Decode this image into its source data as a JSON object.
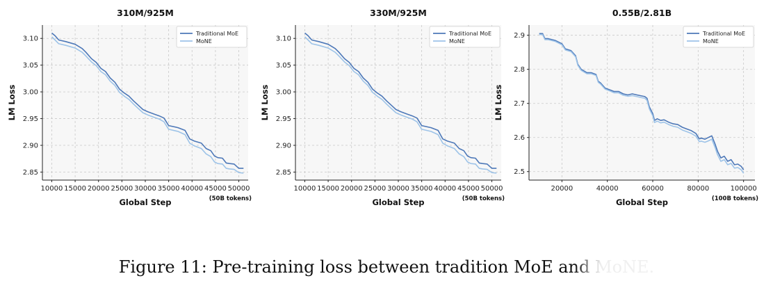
{
  "caption": "Figure 11: Pre-training loss between tradition MoE and MoNE.",
  "chart_data": [
    {
      "type": "line",
      "title": "310M/925M",
      "xlabel": "Global Step",
      "ylabel": "LM Loss",
      "xlim": [
        8000,
        52000
      ],
      "ylim": [
        2.835,
        3.125
      ],
      "xticks": [
        10000,
        15000,
        20000,
        25000,
        30000,
        35000,
        40000,
        45000,
        50000
      ],
      "yticks": [
        2.85,
        2.9,
        2.95,
        3.0,
        3.05,
        3.1
      ],
      "tick_decimals": 2,
      "annotation": "(50B tokens)",
      "legend": "top-right",
      "grid": true,
      "series": [
        {
          "name": "Traditional MoE",
          "color": "#4d78b8",
          "x": [
            10000,
            10700,
            11500,
            13000,
            15000,
            16500,
            17300,
            18500,
            19500,
            20500,
            21500,
            22500,
            23500,
            24500,
            25500,
            26500,
            27500,
            28500,
            29500,
            30500,
            32000,
            33000,
            34000,
            35000,
            37000,
            38500,
            39500,
            40500,
            42000,
            43000,
            44000,
            44800,
            45500,
            46500,
            47300,
            48000,
            49000,
            50000,
            51000
          ],
          "y": [
            3.11,
            3.105,
            3.097,
            3.094,
            3.089,
            3.081,
            3.074,
            3.062,
            3.055,
            3.044,
            3.038,
            3.026,
            3.018,
            3.005,
            2.998,
            2.992,
            2.983,
            2.975,
            2.967,
            2.963,
            2.958,
            2.955,
            2.951,
            2.937,
            2.933,
            2.928,
            2.912,
            2.908,
            2.904,
            2.894,
            2.89,
            2.88,
            2.877,
            2.876,
            2.867,
            2.866,
            2.865,
            2.857,
            2.857
          ]
        },
        {
          "name": "MoNE",
          "color": "#9dc3e8",
          "x": [
            10000,
            10700,
            11500,
            13000,
            15000,
            16500,
            17300,
            18500,
            19500,
            20500,
            21500,
            22500,
            23500,
            24500,
            25500,
            26500,
            27500,
            28500,
            29500,
            30500,
            32000,
            33000,
            34000,
            35000,
            37000,
            38500,
            39500,
            40500,
            42000,
            43000,
            44000,
            44800,
            45500,
            46500,
            47300,
            48000,
            49000,
            50000,
            51000
          ],
          "y": [
            3.103,
            3.097,
            3.09,
            3.087,
            3.082,
            3.074,
            3.067,
            3.056,
            3.049,
            3.038,
            3.032,
            3.02,
            3.012,
            2.999,
            2.992,
            2.986,
            2.977,
            2.969,
            2.961,
            2.957,
            2.952,
            2.949,
            2.944,
            2.93,
            2.926,
            2.92,
            2.904,
            2.899,
            2.894,
            2.884,
            2.879,
            2.869,
            2.866,
            2.865,
            2.857,
            2.856,
            2.855,
            2.849,
            2.848
          ]
        }
      ]
    },
    {
      "type": "line",
      "title": "330M/925M",
      "xlabel": "Global Step",
      "ylabel": "LM Loss",
      "xlim": [
        8000,
        52000
      ],
      "ylim": [
        2.835,
        3.125
      ],
      "xticks": [
        10000,
        15000,
        20000,
        25000,
        30000,
        35000,
        40000,
        45000,
        50000
      ],
      "yticks": [
        2.85,
        2.9,
        2.95,
        3.0,
        3.05,
        3.1
      ],
      "tick_decimals": 2,
      "annotation": "(50B tokens)",
      "legend": "top-right",
      "grid": true,
      "series": [
        {
          "name": "Traditional MoE",
          "color": "#4d78b8",
          "x": [
            10000,
            10700,
            11500,
            13000,
            15000,
            16500,
            17300,
            18500,
            19500,
            20500,
            21500,
            22500,
            23500,
            24500,
            25500,
            26500,
            27500,
            28500,
            29500,
            30500,
            32000,
            33000,
            34000,
            35000,
            37000,
            38500,
            39500,
            40500,
            42000,
            43000,
            44000,
            44800,
            45500,
            46500,
            47300,
            48000,
            49000,
            50000,
            51000
          ],
          "y": [
            3.11,
            3.105,
            3.097,
            3.094,
            3.089,
            3.081,
            3.074,
            3.062,
            3.055,
            3.044,
            3.038,
            3.026,
            3.018,
            3.005,
            2.998,
            2.992,
            2.983,
            2.975,
            2.967,
            2.963,
            2.958,
            2.955,
            2.951,
            2.937,
            2.933,
            2.928,
            2.912,
            2.908,
            2.904,
            2.894,
            2.89,
            2.88,
            2.877,
            2.876,
            2.867,
            2.866,
            2.865,
            2.857,
            2.857
          ]
        },
        {
          "name": "MoNE",
          "color": "#9dc3e8",
          "x": [
            10000,
            10700,
            11500,
            13000,
            15000,
            16500,
            17300,
            18500,
            19500,
            20500,
            21500,
            22500,
            23500,
            24500,
            25500,
            26500,
            27500,
            28500,
            29500,
            30500,
            32000,
            33000,
            34000,
            35000,
            37000,
            38500,
            39500,
            40500,
            42000,
            43000,
            44000,
            44800,
            45500,
            46500,
            47300,
            48000,
            49000,
            50000,
            51000
          ],
          "y": [
            3.103,
            3.097,
            3.09,
            3.087,
            3.082,
            3.074,
            3.067,
            3.056,
            3.049,
            3.038,
            3.032,
            3.02,
            3.012,
            2.999,
            2.992,
            2.986,
            2.977,
            2.969,
            2.961,
            2.957,
            2.952,
            2.949,
            2.944,
            2.93,
            2.926,
            2.92,
            2.904,
            2.899,
            2.894,
            2.884,
            2.879,
            2.869,
            2.866,
            2.865,
            2.857,
            2.856,
            2.855,
            2.849,
            2.848
          ]
        }
      ]
    },
    {
      "type": "line",
      "title": "0.55B/2.81B",
      "xlabel": "Global Step",
      "ylabel": "LM Loss",
      "xlim": [
        5500,
        105000
      ],
      "ylim": [
        2.475,
        2.93
      ],
      "xticks": [
        20000,
        40000,
        60000,
        80000,
        100000
      ],
      "yticks": [
        2.5,
        2.6,
        2.7,
        2.8,
        2.9
      ],
      "tick_decimals": 1,
      "annotation": "(100B tokens)",
      "legend": "top-right",
      "grid": true,
      "series": [
        {
          "name": "Traditional MoE",
          "color": "#4d78b8",
          "x": [
            10000,
            11500,
            12500,
            14000,
            17000,
            20000,
            21500,
            24000,
            26000,
            27000,
            28500,
            31000,
            33000,
            35000,
            36000,
            37000,
            39000,
            41000,
            43000,
            45000,
            47000,
            49000,
            51000,
            53000,
            55000,
            56500,
            57500,
            58500,
            60000,
            60800,
            62000,
            63500,
            65000,
            67000,
            69000,
            71000,
            73000,
            75000,
            77000,
            79000,
            80500,
            81500,
            83000,
            84500,
            86000,
            87500,
            88500,
            90000,
            91500,
            93000,
            94500,
            96000,
            97500,
            99000,
            100000
          ],
          "y": [
            2.905,
            2.905,
            2.89,
            2.89,
            2.885,
            2.875,
            2.86,
            2.855,
            2.84,
            2.815,
            2.8,
            2.79,
            2.79,
            2.785,
            2.765,
            2.76,
            2.745,
            2.74,
            2.735,
            2.735,
            2.728,
            2.725,
            2.728,
            2.725,
            2.722,
            2.72,
            2.715,
            2.69,
            2.67,
            2.65,
            2.655,
            2.65,
            2.652,
            2.645,
            2.64,
            2.638,
            2.63,
            2.625,
            2.62,
            2.612,
            2.596,
            2.598,
            2.595,
            2.6,
            2.605,
            2.58,
            2.56,
            2.54,
            2.545,
            2.53,
            2.535,
            2.52,
            2.522,
            2.515,
            2.505
          ]
        },
        {
          "name": "MoNE",
          "color": "#9dc3e8",
          "x": [
            10000,
            11500,
            12500,
            14000,
            17000,
            20000,
            21500,
            24000,
            26000,
            27000,
            28500,
            31000,
            33000,
            35000,
            36000,
            37000,
            39000,
            41000,
            43000,
            45000,
            47000,
            49000,
            51000,
            53000,
            55000,
            56500,
            57500,
            58500,
            60000,
            60800,
            62000,
            63500,
            65000,
            67000,
            69000,
            71000,
            73000,
            75000,
            77000,
            79000,
            80500,
            81500,
            83000,
            84500,
            86000,
            87500,
            88500,
            90000,
            91500,
            93000,
            94500,
            96000,
            97500,
            99000,
            100000
          ],
          "y": [
            2.902,
            2.902,
            2.887,
            2.887,
            2.882,
            2.872,
            2.857,
            2.852,
            2.837,
            2.812,
            2.797,
            2.787,
            2.787,
            2.782,
            2.762,
            2.757,
            2.742,
            2.737,
            2.731,
            2.731,
            2.724,
            2.721,
            2.723,
            2.72,
            2.717,
            2.715,
            2.709,
            2.684,
            2.664,
            2.644,
            2.648,
            2.643,
            2.645,
            2.638,
            2.633,
            2.63,
            2.622,
            2.617,
            2.612,
            2.604,
            2.588,
            2.589,
            2.586,
            2.59,
            2.595,
            2.57,
            2.55,
            2.53,
            2.535,
            2.52,
            2.524,
            2.51,
            2.512,
            2.505,
            2.495
          ]
        }
      ]
    }
  ]
}
